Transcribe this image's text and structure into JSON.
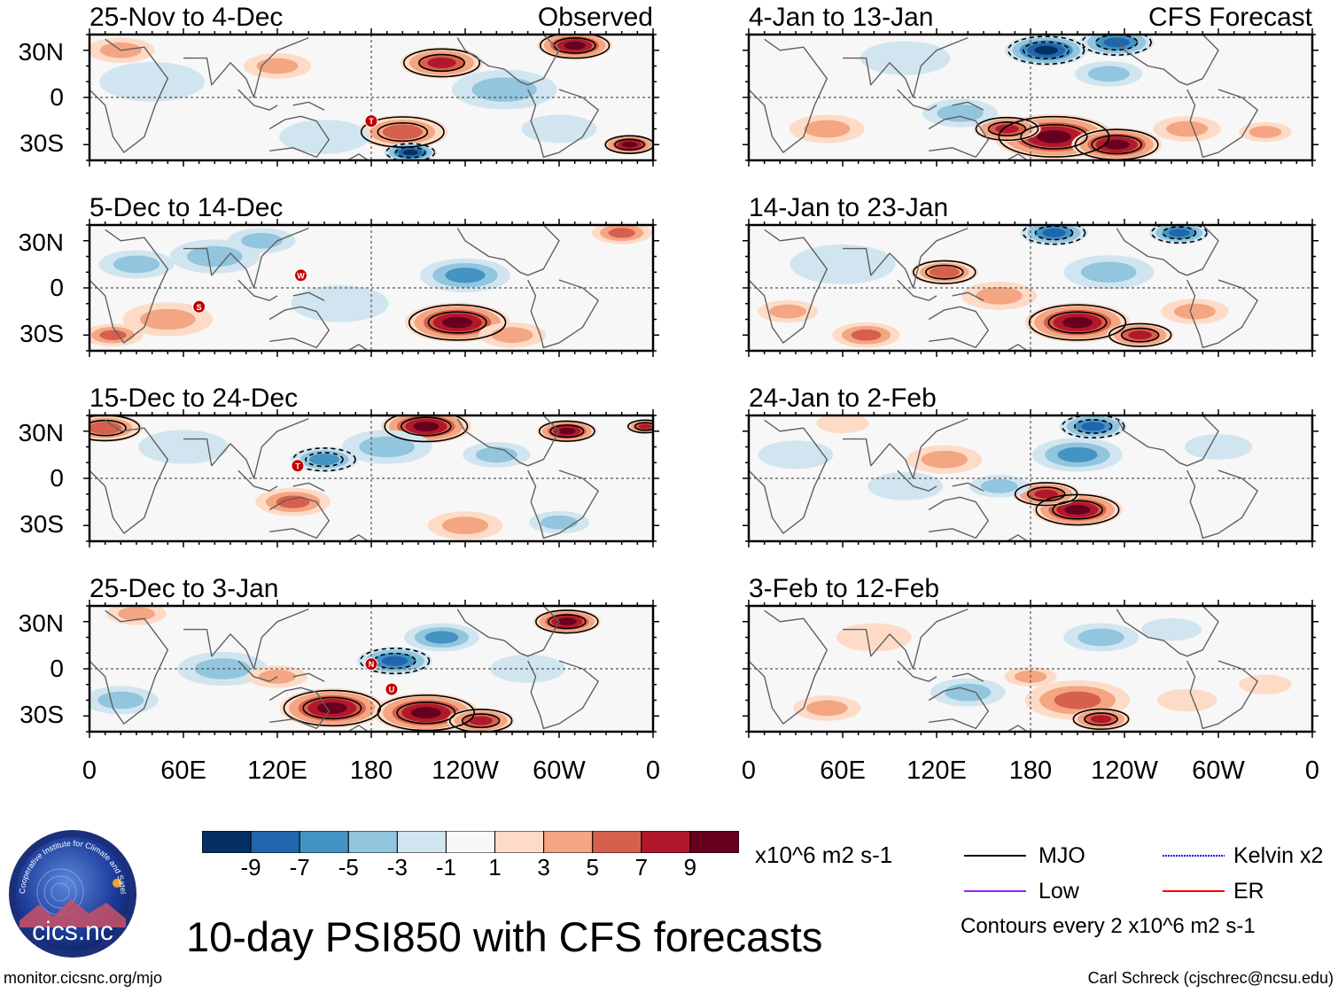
{
  "panels": [
    {
      "id": "obs1",
      "title": "25-Nov to 4-Dec",
      "tag": "Observed",
      "column": "left",
      "blobs": [
        {
          "cx": 200,
          "cy": -22,
          "r": 12,
          "v": 6
        },
        {
          "cx": 225,
          "cy": 22,
          "r": 11,
          "v": 8
        },
        {
          "cx": 205,
          "cy": -35,
          "r": 7,
          "v": -9
        },
        {
          "cx": 120,
          "cy": 20,
          "r": 9,
          "v": 3
        },
        {
          "cx": 310,
          "cy": 33,
          "r": 10,
          "v": 9
        },
        {
          "cx": 345,
          "cy": -30,
          "r": 7,
          "v": 9
        },
        {
          "cx": 265,
          "cy": 5,
          "r": 14,
          "v": -3
        },
        {
          "cx": 40,
          "cy": 10,
          "r": 14,
          "v": -2
        },
        {
          "cx": 150,
          "cy": -25,
          "r": 12,
          "v": -2
        },
        {
          "cx": 20,
          "cy": 30,
          "r": 9,
          "v": 4
        },
        {
          "cx": 300,
          "cy": -20,
          "r": 10,
          "v": -2
        }
      ],
      "markers": [
        {
          "lon": 180,
          "lat": -15,
          "label": "T"
        }
      ]
    },
    {
      "id": "obs2",
      "title": "5-Dec to 14-Dec",
      "tag": "",
      "column": "left",
      "blobs": [
        {
          "cx": 235,
          "cy": -22,
          "r": 14,
          "v": 9
        },
        {
          "cx": 240,
          "cy": 8,
          "r": 12,
          "v": -5
        },
        {
          "cx": 80,
          "cy": 20,
          "r": 12,
          "v": -3
        },
        {
          "cx": 30,
          "cy": 15,
          "r": 10,
          "v": -3
        },
        {
          "cx": 110,
          "cy": 30,
          "r": 9,
          "v": -3
        },
        {
          "cx": 50,
          "cy": -20,
          "r": 12,
          "v": 3
        },
        {
          "cx": 340,
          "cy": 35,
          "r": 8,
          "v": 5
        },
        {
          "cx": 270,
          "cy": -30,
          "r": 9,
          "v": 4
        },
        {
          "cx": 160,
          "cy": -10,
          "r": 13,
          "v": -2
        },
        {
          "cx": 15,
          "cy": -30,
          "r": 8,
          "v": 5
        }
      ],
      "markers": [
        {
          "lon": 135,
          "lat": 8,
          "label": "W"
        },
        {
          "lon": 70,
          "lat": -12,
          "label": "S"
        }
      ]
    },
    {
      "id": "obs3",
      "title": "15-Dec to 24-Dec",
      "tag": "",
      "column": "left",
      "blobs": [
        {
          "cx": 215,
          "cy": 33,
          "r": 12,
          "v": 9
        },
        {
          "cx": 305,
          "cy": 30,
          "r": 8,
          "v": 9
        },
        {
          "cx": 10,
          "cy": 32,
          "r": 10,
          "v": 6
        },
        {
          "cx": 355,
          "cy": 33,
          "r": 5,
          "v": 8
        },
        {
          "cx": 150,
          "cy": 12,
          "r": 9,
          "v": -6
        },
        {
          "cx": 190,
          "cy": 20,
          "r": 12,
          "v": -4
        },
        {
          "cx": 130,
          "cy": -15,
          "r": 10,
          "v": 5
        },
        {
          "cx": 240,
          "cy": -30,
          "r": 10,
          "v": 4
        },
        {
          "cx": 60,
          "cy": 20,
          "r": 12,
          "v": -2
        },
        {
          "cx": 300,
          "cy": -28,
          "r": 8,
          "v": -3
        },
        {
          "cx": 260,
          "cy": 15,
          "r": 9,
          "v": -3
        }
      ],
      "markers": [
        {
          "lon": 133,
          "lat": 8,
          "label": "T"
        }
      ]
    },
    {
      "id": "obs4",
      "title": "25-Dec to 3-Jan",
      "tag": "",
      "column": "left",
      "blobs": [
        {
          "cx": 155,
          "cy": -25,
          "r": 14,
          "v": 9
        },
        {
          "cx": 215,
          "cy": -28,
          "r": 14,
          "v": 9
        },
        {
          "cx": 250,
          "cy": -33,
          "r": 9,
          "v": 8
        },
        {
          "cx": 305,
          "cy": 30,
          "r": 9,
          "v": 9
        },
        {
          "cx": 195,
          "cy": 5,
          "r": 10,
          "v": -8
        },
        {
          "cx": 225,
          "cy": 20,
          "r": 10,
          "v": -5
        },
        {
          "cx": 85,
          "cy": 0,
          "r": 12,
          "v": -3
        },
        {
          "cx": 20,
          "cy": -20,
          "r": 10,
          "v": -4
        },
        {
          "cx": 30,
          "cy": 35,
          "r": 8,
          "v": 3
        },
        {
          "cx": 120,
          "cy": -5,
          "r": 8,
          "v": 4
        },
        {
          "cx": 280,
          "cy": 0,
          "r": 10,
          "v": -2
        }
      ],
      "markers": [
        {
          "lon": 180,
          "lat": 3,
          "label": "N"
        },
        {
          "lon": 193,
          "lat": -13,
          "label": "U"
        }
      ]
    },
    {
      "id": "fc1",
      "title": "4-Jan to 13-Jan",
      "tag": "CFS Forecast",
      "column": "right",
      "blobs": [
        {
          "cx": 195,
          "cy": -25,
          "r": 16,
          "v": 9
        },
        {
          "cx": 235,
          "cy": -30,
          "r": 12,
          "v": 9
        },
        {
          "cx": 165,
          "cy": -20,
          "r": 9,
          "v": 7
        },
        {
          "cx": 190,
          "cy": 30,
          "r": 11,
          "v": -9
        },
        {
          "cx": 235,
          "cy": 35,
          "r": 10,
          "v": -8
        },
        {
          "cx": 135,
          "cy": -10,
          "r": 10,
          "v": -4
        },
        {
          "cx": 50,
          "cy": -20,
          "r": 10,
          "v": 4
        },
        {
          "cx": 280,
          "cy": -20,
          "r": 9,
          "v": 3
        },
        {
          "cx": 330,
          "cy": -22,
          "r": 7,
          "v": 3
        },
        {
          "cx": 100,
          "cy": 25,
          "r": 12,
          "v": -2
        },
        {
          "cx": 230,
          "cy": 15,
          "r": 9,
          "v": -3
        }
      ],
      "markers": []
    },
    {
      "id": "fc2",
      "title": "14-Jan to 23-Jan",
      "tag": "",
      "column": "right",
      "blobs": [
        {
          "cx": 210,
          "cy": -22,
          "r": 14,
          "v": 9
        },
        {
          "cx": 250,
          "cy": -30,
          "r": 9,
          "v": 8
        },
        {
          "cx": 125,
          "cy": 10,
          "r": 9,
          "v": 6
        },
        {
          "cx": 160,
          "cy": -5,
          "r": 10,
          "v": 4
        },
        {
          "cx": 195,
          "cy": 35,
          "r": 9,
          "v": -8
        },
        {
          "cx": 275,
          "cy": 35,
          "r": 8,
          "v": -8
        },
        {
          "cx": 75,
          "cy": -30,
          "r": 9,
          "v": 5
        },
        {
          "cx": 285,
          "cy": -15,
          "r": 9,
          "v": 4
        },
        {
          "cx": 230,
          "cy": 10,
          "r": 12,
          "v": -3
        },
        {
          "cx": 60,
          "cy": 15,
          "r": 14,
          "v": -2
        },
        {
          "cx": 25,
          "cy": -15,
          "r": 8,
          "v": 3
        }
      ],
      "markers": []
    },
    {
      "id": "fc3",
      "title": "24-Jan to 2-Feb",
      "tag": "",
      "column": "right",
      "blobs": [
        {
          "cx": 210,
          "cy": -20,
          "r": 12,
          "v": 9
        },
        {
          "cx": 190,
          "cy": -10,
          "r": 9,
          "v": 7
        },
        {
          "cx": 220,
          "cy": 33,
          "r": 9,
          "v": -8
        },
        {
          "cx": 210,
          "cy": 15,
          "r": 12,
          "v": -5
        },
        {
          "cx": 125,
          "cy": 12,
          "r": 10,
          "v": 4
        },
        {
          "cx": 160,
          "cy": -5,
          "r": 8,
          "v": -3
        },
        {
          "cx": 30,
          "cy": 15,
          "r": 10,
          "v": -2
        },
        {
          "cx": 100,
          "cy": -5,
          "r": 10,
          "v": -2
        },
        {
          "cx": 60,
          "cy": 35,
          "r": 7,
          "v": 2
        },
        {
          "cx": 300,
          "cy": 20,
          "r": 9,
          "v": -2
        }
      ],
      "markers": []
    },
    {
      "id": "fc4",
      "title": "3-Feb to 12-Feb",
      "tag": "",
      "column": "right",
      "blobs": [
        {
          "cx": 210,
          "cy": -20,
          "r": 14,
          "v": 5
        },
        {
          "cx": 225,
          "cy": -32,
          "r": 8,
          "v": 7
        },
        {
          "cx": 50,
          "cy": -25,
          "r": 9,
          "v": 4
        },
        {
          "cx": 140,
          "cy": -15,
          "r": 10,
          "v": -3
        },
        {
          "cx": 225,
          "cy": 20,
          "r": 10,
          "v": -4
        },
        {
          "cx": 180,
          "cy": -5,
          "r": 7,
          "v": 4
        },
        {
          "cx": 280,
          "cy": -20,
          "r": 8,
          "v": 2
        },
        {
          "cx": 80,
          "cy": 20,
          "r": 10,
          "v": 2
        },
        {
          "cx": 270,
          "cy": 25,
          "r": 8,
          "v": -2
        },
        {
          "cx": 330,
          "cy": -10,
          "r": 7,
          "v": 2
        }
      ],
      "markers": []
    }
  ],
  "axes": {
    "lat_labels": [
      "30N",
      "0",
      "30S"
    ],
    "lat_values": [
      30,
      0,
      -30
    ],
    "lon_labels": [
      "0",
      "60E",
      "120E",
      "180",
      "120W",
      "60W",
      "0"
    ],
    "lon_values": [
      0,
      60,
      120,
      180,
      240,
      300,
      360
    ],
    "lat_range": [
      -40,
      40
    ],
    "lon_range": [
      0,
      360
    ]
  },
  "colorbar": {
    "labels": [
      "-9",
      "-7",
      "-5",
      "-3",
      "-1",
      "1",
      "3",
      "5",
      "7",
      "9"
    ],
    "colors": [
      "#053061",
      "#2166ac",
      "#4393c3",
      "#92c5de",
      "#d1e5f0",
      "#f7f7f7",
      "#fddbc7",
      "#f4a582",
      "#d6604d",
      "#b2182b",
      "#67001f"
    ],
    "units": "x10^6 m2 s-1"
  },
  "legend": {
    "items": [
      {
        "label": "MJO",
        "color": "#000000"
      },
      {
        "label": "Kelvin x2",
        "color": "#0000ff"
      },
      {
        "label": "Low",
        "color": "#a020f0"
      },
      {
        "label": "ER",
        "color": "#ff0000"
      }
    ],
    "note": "Contours every 2 x10^6 m2 s-1"
  },
  "logo": {
    "ring_text": "Cooperative Institute for Climate and Satellites",
    "name": "cics.nc"
  },
  "main_title": "10-day PSI850 with CFS forecasts",
  "footer": {
    "left": "monitor.cicsnc.org/mjo",
    "right": "Carl Schreck (cjschrec@ncsu.edu)"
  }
}
